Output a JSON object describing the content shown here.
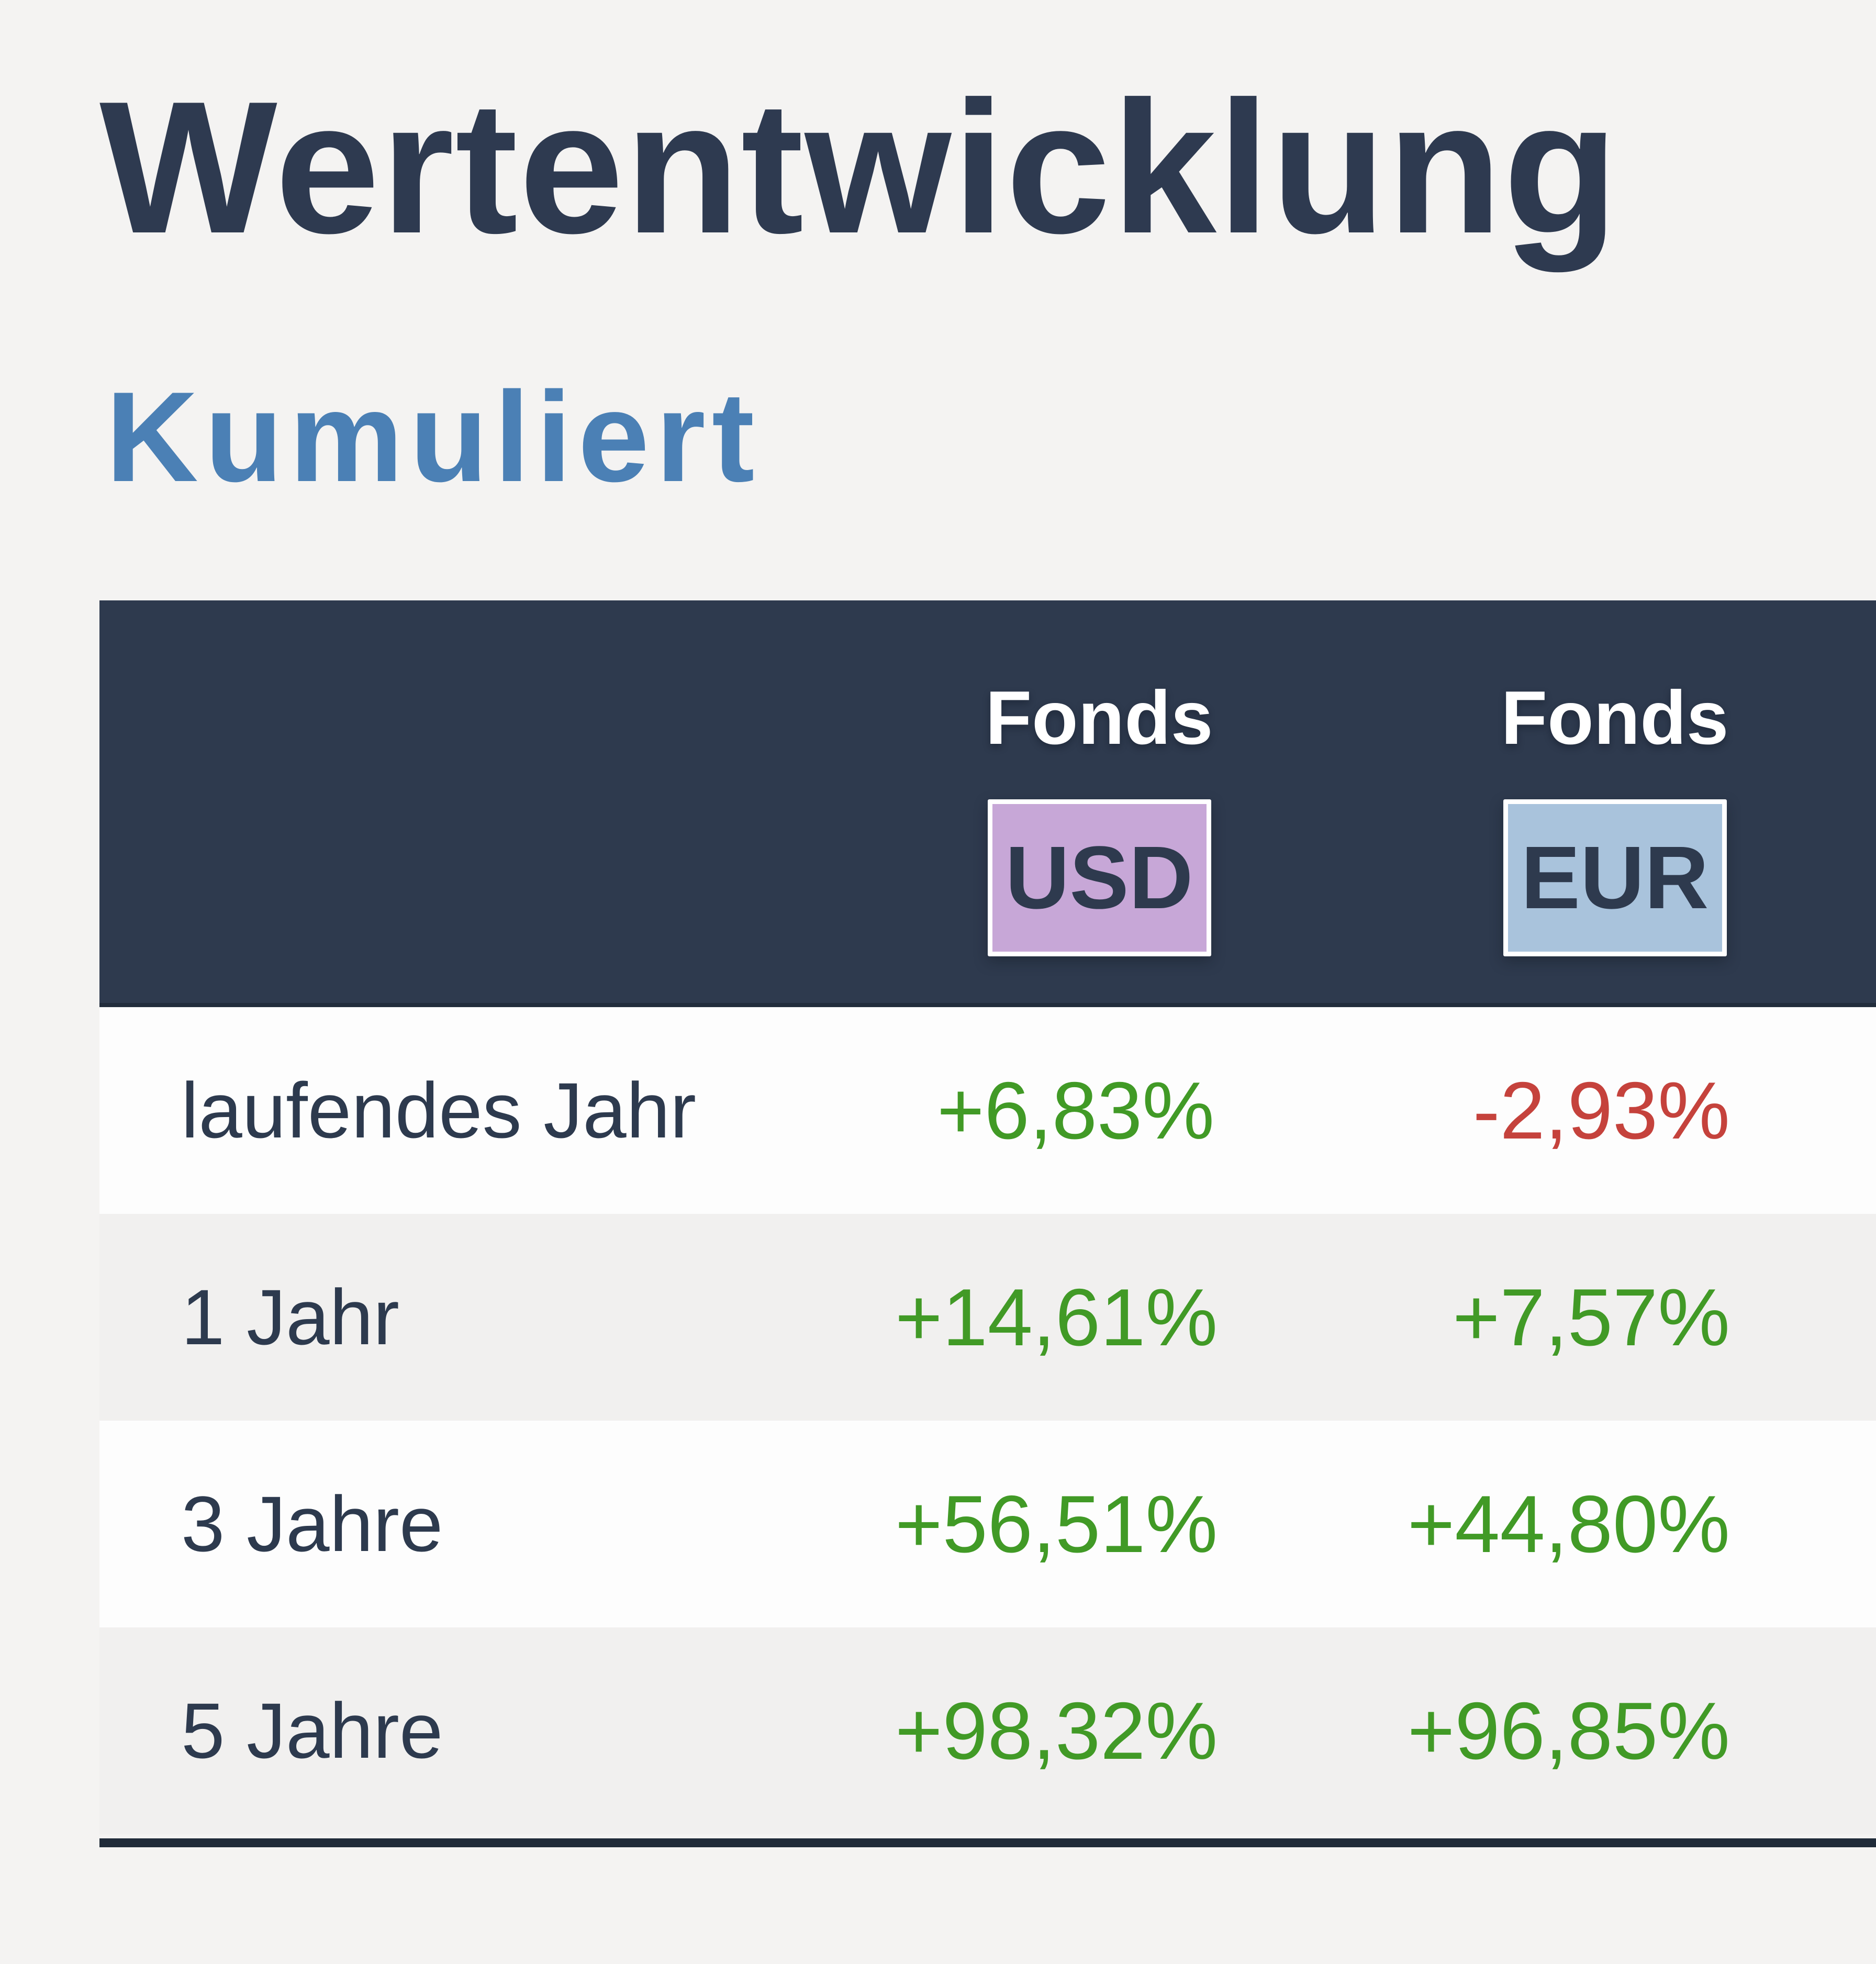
{
  "page": {
    "title": "Wertentwicklung",
    "subtitle": "Kumuliert",
    "background": "#f4f3f2"
  },
  "table": {
    "header": {
      "background": "#2e3a4e",
      "columns": [
        {
          "label": "Fonds",
          "currency": "USD",
          "badge_color": "#c7a7d7"
        },
        {
          "label": "Fonds",
          "currency": "EUR",
          "badge_color": "#a9c3dc"
        }
      ]
    },
    "rows": [
      {
        "label": "laufendes Jahr",
        "usd": "+6,83%",
        "usd_trend": "up",
        "eur": "-2,93%",
        "eur_trend": "down"
      },
      {
        "label": "1 Jahr",
        "usd": "+14,61%",
        "usd_trend": "up",
        "eur": "+7,57%",
        "eur_trend": "up"
      },
      {
        "label": "3 Jahre",
        "usd": "+56,51%",
        "usd_trend": "up",
        "eur": "+44,80%",
        "eur_trend": "up"
      },
      {
        "label": "5 Jahre",
        "usd": "+98,32%",
        "usd_trend": "up",
        "eur": "+96,85%",
        "eur_trend": "up"
      }
    ]
  },
  "colors": {
    "title": "#2e3a50",
    "subtitle": "#4b80b5",
    "header_band": "#2e3a4e",
    "positive": "#419a26",
    "negative": "#c5423c",
    "row_white": "#fdfdfd",
    "row_alt": "#f1f0ef",
    "bottom_rule": "#202b39"
  }
}
